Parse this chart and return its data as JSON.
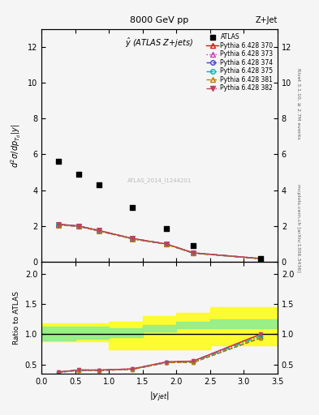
{
  "title_top": "8000 GeV pp",
  "title_right": "Z+Jet",
  "plot_title": "$\\hat{y}$ (ATLAS Z+jets)",
  "ylabel_main": "$d^2\\sigma/dp_{T_d}|y|$",
  "ylabel_ratio": "Ratio to ATLAS",
  "xlabel": "$|y_{jet}|$",
  "right_label_top": "Rivet 3.1.10, ≥ 2.7M events",
  "right_label_bottom": "mcplots.cern.ch [arXiv:1306.3436]",
  "watermark": "ATLAS_2014_I1244201",
  "atlas_x": [
    0.25,
    0.55,
    0.85,
    1.35,
    1.85,
    2.25,
    3.25
  ],
  "atlas_y": [
    5.6,
    4.9,
    4.3,
    3.05,
    1.85,
    0.9,
    0.18
  ],
  "pythia_x": [
    0.25,
    0.55,
    0.85,
    1.35,
    1.85,
    2.25,
    3.25
  ],
  "p370_y": [
    2.1,
    2.0,
    1.75,
    1.3,
    1.0,
    0.5,
    0.18
  ],
  "p373_y": [
    2.1,
    2.0,
    1.75,
    1.3,
    1.0,
    0.5,
    0.18
  ],
  "p374_y": [
    2.05,
    1.98,
    1.72,
    1.28,
    0.98,
    0.48,
    0.17
  ],
  "p375_y": [
    2.08,
    1.99,
    1.74,
    1.29,
    0.99,
    0.49,
    0.175
  ],
  "p381_y": [
    2.05,
    1.98,
    1.72,
    1.28,
    0.98,
    0.48,
    0.17
  ],
  "p382_y": [
    2.1,
    2.0,
    1.75,
    1.3,
    1.0,
    0.5,
    0.18
  ],
  "ratio_x": [
    0.25,
    0.55,
    0.85,
    1.35,
    1.85,
    2.25,
    3.25
  ],
  "ratio_p370": [
    0.375,
    0.408,
    0.407,
    0.426,
    0.541,
    0.556,
    1.0
  ],
  "ratio_p373": [
    0.375,
    0.408,
    0.407,
    0.426,
    0.541,
    0.556,
    1.0
  ],
  "ratio_p374": [
    0.366,
    0.404,
    0.4,
    0.419,
    0.53,
    0.533,
    0.94
  ],
  "ratio_p375": [
    0.371,
    0.406,
    0.405,
    0.423,
    0.535,
    0.544,
    0.97
  ],
  "ratio_p381": [
    0.366,
    0.404,
    0.4,
    0.419,
    0.53,
    0.533,
    0.94
  ],
  "ratio_p382": [
    0.375,
    0.408,
    0.407,
    0.426,
    0.541,
    0.556,
    1.0
  ],
  "band_x": [
    0.0,
    0.5,
    1.0,
    1.5,
    2.0,
    2.5,
    3.5
  ],
  "band_green_lo": [
    0.9,
    0.9,
    0.92,
    0.95,
    1.05,
    1.1,
    1.1
  ],
  "band_green_hi": [
    1.1,
    1.12,
    1.12,
    1.1,
    1.15,
    1.2,
    1.25
  ],
  "band_yellow_lo": [
    0.85,
    0.88,
    0.88,
    0.75,
    0.75,
    0.75,
    0.82
  ],
  "band_yellow_hi": [
    1.15,
    1.18,
    1.18,
    1.2,
    1.3,
    1.35,
    1.45
  ],
  "xlim": [
    0,
    3.5
  ],
  "ylim_main": [
    0,
    13
  ],
  "ylim_ratio": [
    0.35,
    2.2
  ],
  "yticks_main": [
    0,
    2,
    4,
    6,
    8,
    10,
    12
  ],
  "yticks_ratio": [
    0.5,
    1.0,
    1.5,
    2.0
  ],
  "color_370": "#e0160b",
  "color_373": "#c040c0",
  "color_374": "#4040c0",
  "color_375": "#00b0b0",
  "color_381": "#c08000",
  "color_382": "#c04060",
  "bg_color": "#f5f5f5"
}
